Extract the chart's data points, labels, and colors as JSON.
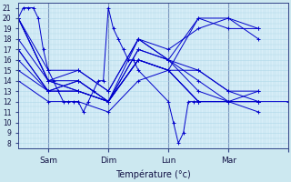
{
  "xlabel": "Température (°c)",
  "bg_color": "#cce8f0",
  "plot_bg": "#d8eef8",
  "line_color": "#0000cc",
  "grid_color": "#b0d8e8",
  "vline_color": "#334488",
  "yticks": [
    8,
    9,
    10,
    11,
    12,
    13,
    14,
    15,
    16,
    17,
    18,
    19,
    20,
    21
  ],
  "ylim": [
    7.5,
    21.5
  ],
  "xlim": [
    0,
    108
  ],
  "xtick_positions": [
    12,
    36,
    60,
    84,
    108
  ],
  "xtick_labels": [
    "Sam",
    "Dim",
    "Lun",
    "Mar",
    ""
  ],
  "vlines": [
    12,
    36,
    60,
    84,
    108
  ],
  "series": [
    [
      0,
      20,
      2,
      21,
      4,
      21,
      6,
      21,
      8,
      20,
      10,
      17,
      12,
      15,
      14,
      14,
      16,
      13,
      18,
      12,
      20,
      12,
      22,
      12,
      24,
      12,
      26,
      11,
      28,
      12,
      30,
      13,
      32,
      14,
      34,
      14,
      36,
      21,
      38,
      19,
      40,
      18,
      42,
      17,
      44,
      16,
      46,
      16,
      48,
      15,
      60,
      12,
      62,
      10,
      64,
      8,
      66,
      9,
      68,
      12,
      70,
      12,
      72,
      12,
      84,
      12,
      96,
      12,
      108,
      12
    ],
    [
      0,
      20,
      12,
      14,
      24,
      13,
      36,
      12,
      48,
      16,
      60,
      15,
      72,
      12,
      84,
      12,
      96,
      13
    ],
    [
      0,
      20,
      12,
      14,
      24,
      13,
      36,
      12,
      48,
      16,
      60,
      15,
      72,
      12,
      84,
      12,
      96,
      12
    ],
    [
      0,
      20,
      12,
      14,
      24,
      14,
      36,
      12,
      48,
      17,
      60,
      16,
      72,
      13,
      84,
      12,
      96,
      12
    ],
    [
      0,
      20,
      12,
      15,
      24,
      15,
      36,
      13,
      48,
      18,
      60,
      16,
      72,
      14,
      84,
      12,
      96,
      12
    ],
    [
      0,
      17,
      12,
      13,
      24,
      14,
      36,
      12,
      48,
      17,
      60,
      16,
      72,
      15,
      84,
      13,
      96,
      13
    ],
    [
      0,
      15,
      12,
      13,
      24,
      13,
      36,
      12,
      48,
      16,
      60,
      15,
      72,
      15,
      84,
      13,
      96,
      12
    ],
    [
      0,
      18,
      12,
      14,
      24,
      15,
      36,
      13,
      48,
      18,
      60,
      17,
      72,
      19,
      84,
      20,
      96,
      19
    ],
    [
      0,
      17,
      12,
      13,
      24,
      14,
      36,
      12,
      48,
      18,
      60,
      16,
      72,
      20,
      84,
      20,
      96,
      18
    ],
    [
      0,
      16,
      12,
      13,
      24,
      13,
      36,
      12,
      48,
      16,
      60,
      15,
      72,
      20,
      84,
      19,
      96,
      19
    ],
    [
      0,
      14,
      12,
      12,
      24,
      12,
      36,
      11,
      48,
      14,
      60,
      15,
      72,
      12,
      84,
      12,
      96,
      11
    ]
  ]
}
